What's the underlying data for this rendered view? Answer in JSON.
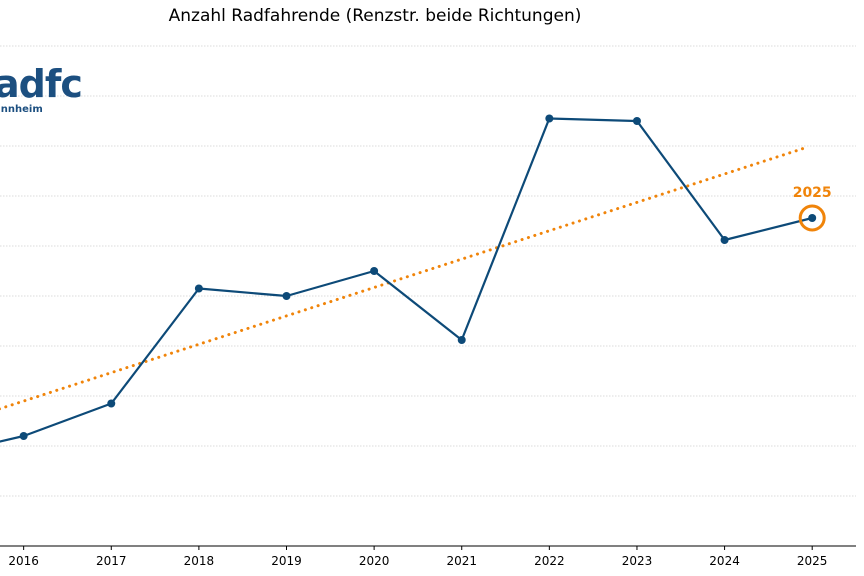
{
  "colors": {
    "series": "#0d4a78",
    "trend": "#f0840a",
    "grid": "#cfcfcf",
    "axis": "#000000",
    "logo": "#1c4f80"
  },
  "logo": {
    "text": "adfc",
    "subtext": "annheim"
  },
  "chart_data": {
    "type": "line",
    "title": "Anzahl Radfahrende (Renzstr. beide Richtungen)",
    "xlabel": "",
    "ylabel": "",
    "x": [
      2016,
      2017,
      2018,
      2019,
      2020,
      2021,
      2022,
      2023,
      2024,
      2025
    ],
    "series": [
      {
        "values": [
          2.2,
          2.85,
          5.15,
          5.0,
          5.5,
          4.12,
          8.55,
          8.5,
          6.12,
          6.56
        ]
      }
    ],
    "trend": {
      "style": "dotted",
      "x_range": [
        2015.65,
        2024.95
      ],
      "values": [
        2.7,
        7.98
      ]
    },
    "highlight": {
      "x": 2025,
      "label": "2025"
    },
    "xlim": [
      2015.73,
      2025.5
    ],
    "ylim": [
      0,
      10
    ],
    "grid": "horizontal dotted",
    "y_tick_labels_shown": false
  }
}
